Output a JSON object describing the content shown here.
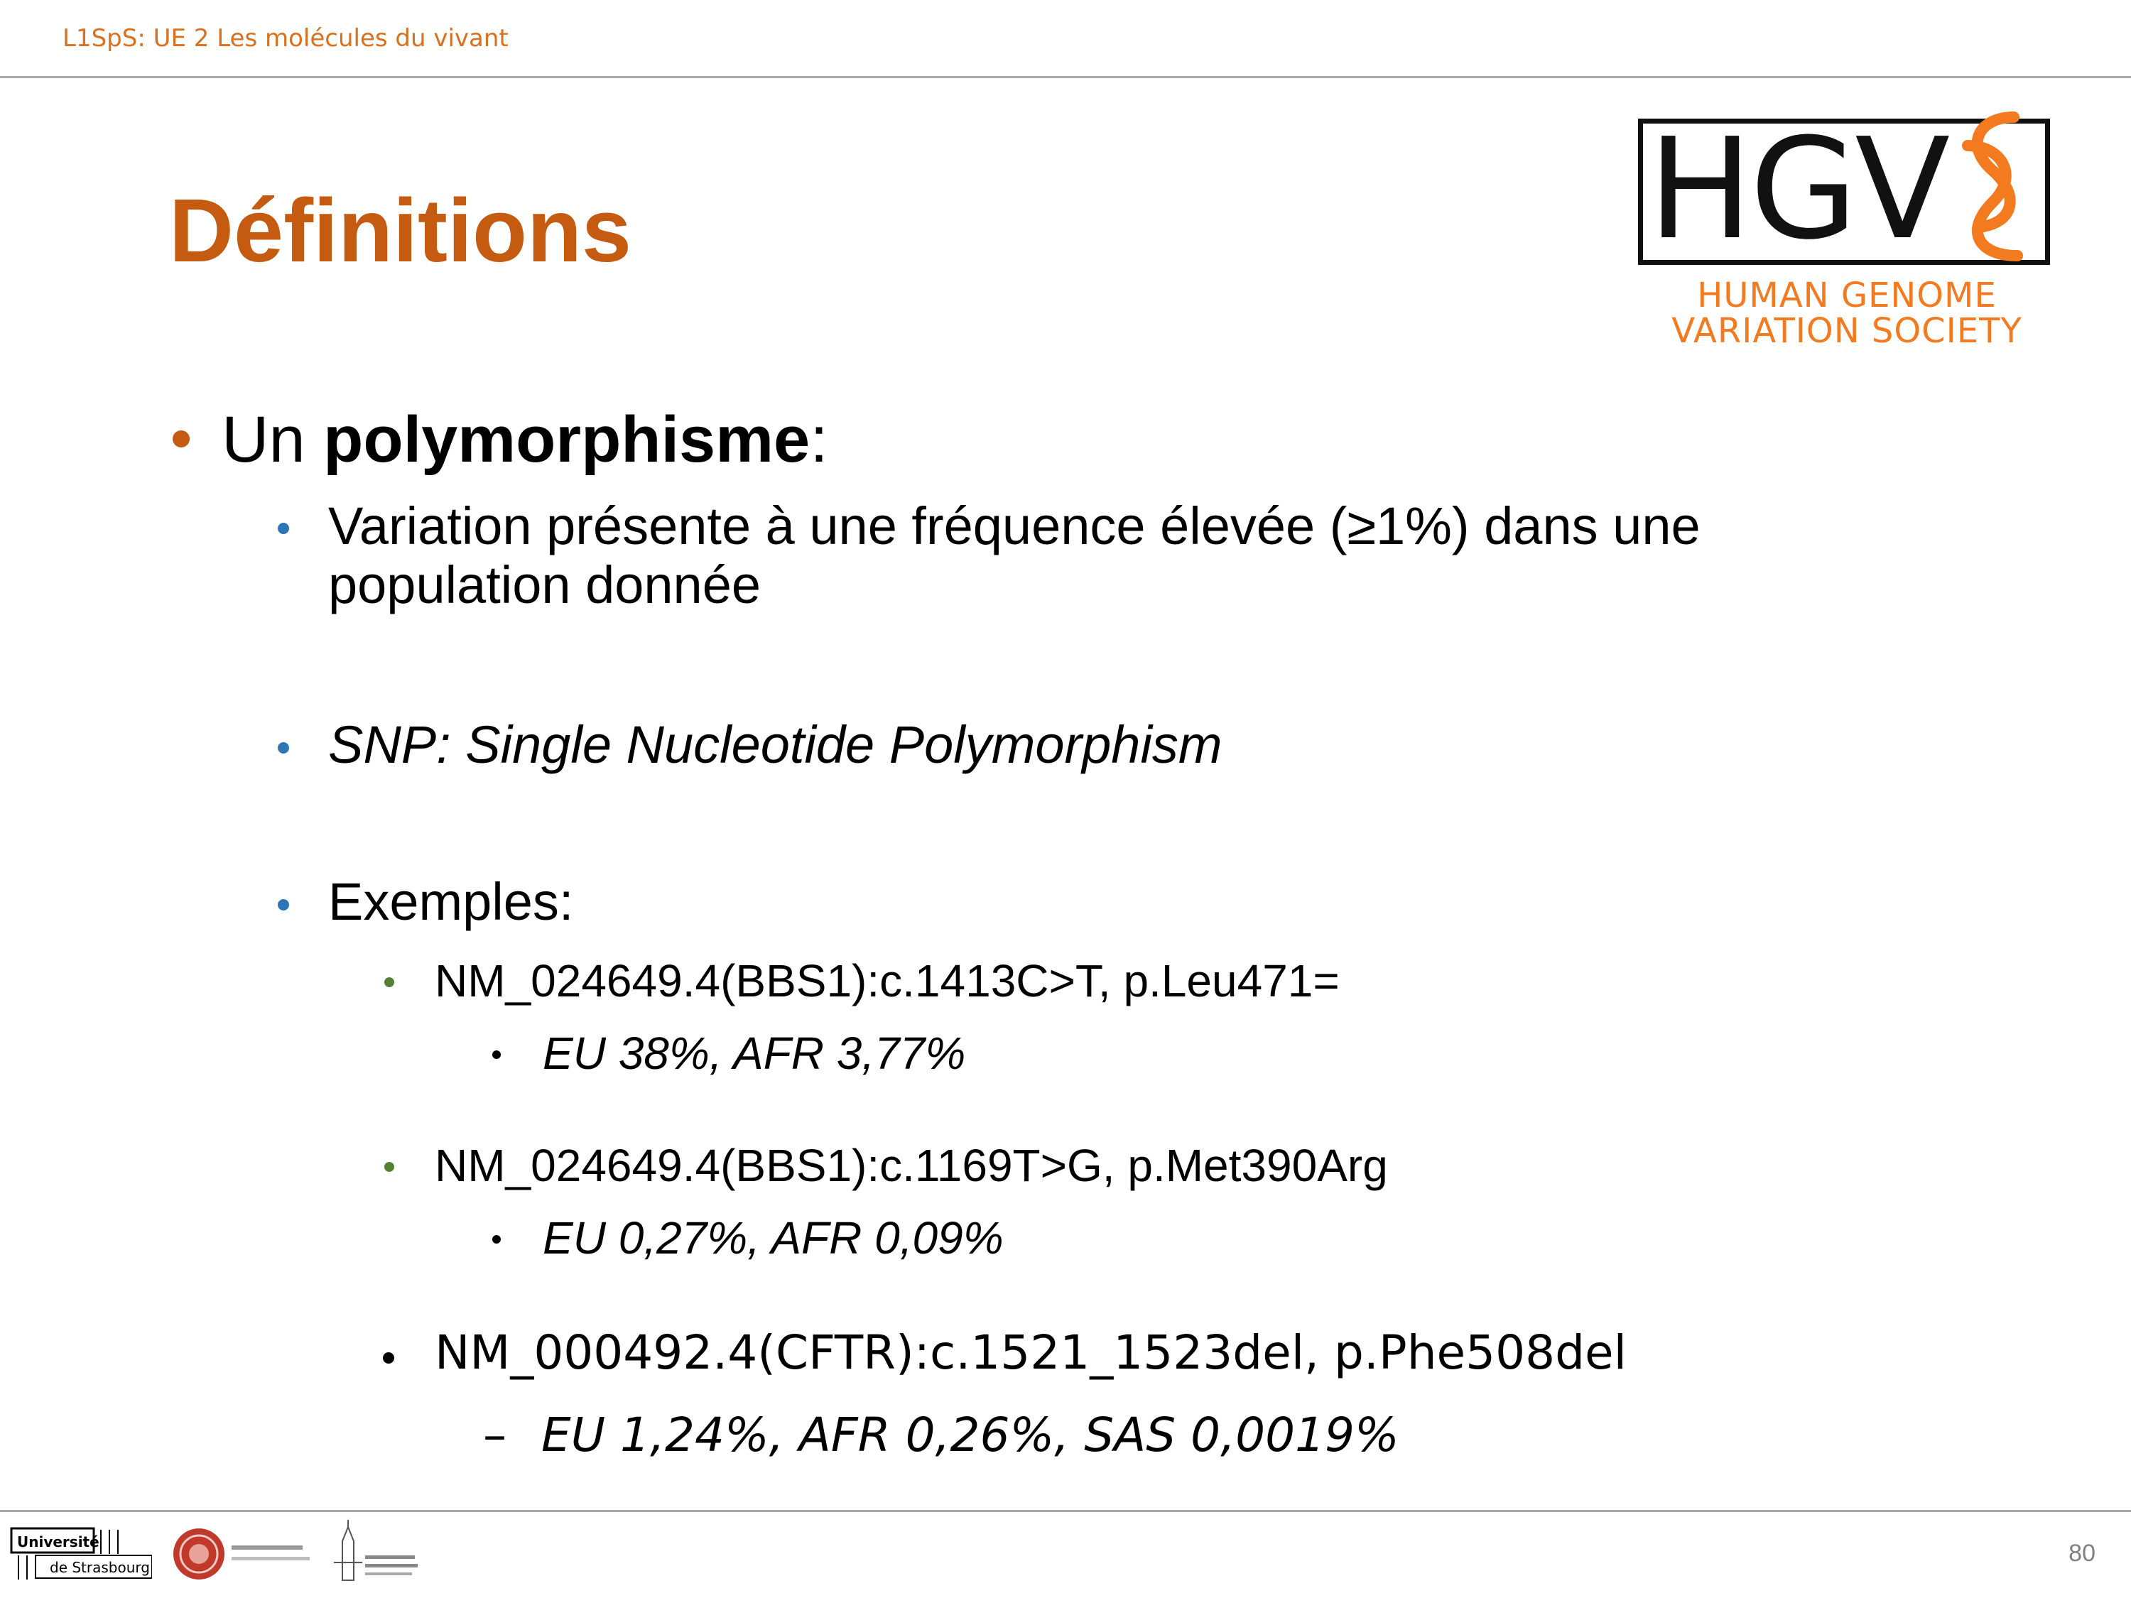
{
  "header": {
    "course": "L1SpS: UE 2 Les molécules du vivant"
  },
  "title": "Définitions",
  "logo": {
    "letters": "HGVS",
    "line1": "HUMAN GENOME",
    "line2": "VARIATION SOCIETY"
  },
  "content": {
    "l1_prefix": "Un ",
    "l1_bold": "polymorphisme",
    "l1_suffix": ":",
    "l2_def_line1": "Variation présente à une fréquence élevée (≥1%) dans une",
    "l2_def_line2": "population donnée",
    "l2_snp": "SNP: Single Nucleotide Polymorphism",
    "l2_examples": "Exemples:",
    "ex1": "NM_024649.4(BBS1):c.1413C>T, p.Leu471=",
    "ex1_freq": "EU 38%, AFR 3,77%",
    "ex2": "NM_024649.4(BBS1):c.1169T>G, p.Met390Arg",
    "ex2_freq": "EU 0,27%, AFR 0,09%",
    "ex3": "NM_000492.4(CFTR):c.1521_1523del, p.Phe508del",
    "ex3_freq": "EU 1,24%, AFR 0,26%, SAS 0,0019%"
  },
  "footer": {
    "page_number": "80",
    "uni_line1": "Université",
    "uni_line2": "de Strasbourg"
  },
  "colors": {
    "title": "#c55a11",
    "header": "#d9711f",
    "bullet_l1": "#c55a11",
    "bullet_l2": "#2e75b6",
    "bullet_l3": "#548235",
    "logo_orange": "#f47a20"
  }
}
